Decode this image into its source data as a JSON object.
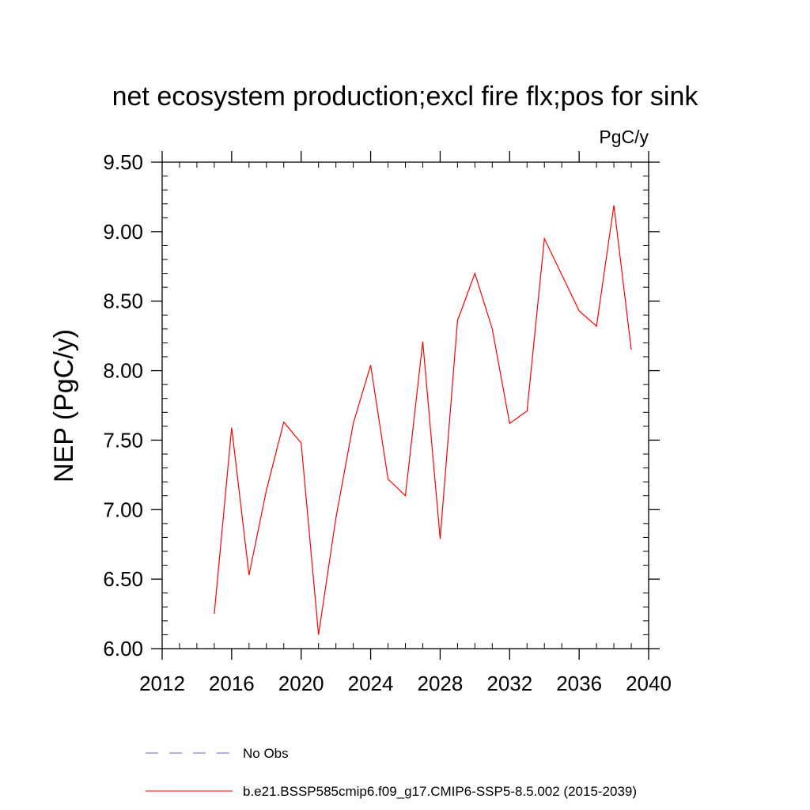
{
  "chart_data": {
    "type": "line",
    "title": "net ecosystem production;excl fire flx;pos for sink",
    "units": "PgC/y",
    "ylabel": "NEP  (PgC/y)",
    "xlabel": "",
    "xlim": [
      2012,
      2040
    ],
    "ylim": [
      6.0,
      9.5
    ],
    "x_ticks": [
      2012,
      2016,
      2020,
      2024,
      2028,
      2032,
      2036,
      2040
    ],
    "x_tick_labels": [
      "2012",
      "2016",
      "2020",
      "2024",
      "2028",
      "2032",
      "2036",
      "2040"
    ],
    "y_ticks": [
      6.0,
      6.5,
      7.0,
      7.5,
      8.0,
      8.5,
      9.0,
      9.5
    ],
    "y_tick_labels": [
      "6.00",
      "6.50",
      "7.00",
      "7.50",
      "8.00",
      "8.50",
      "9.00",
      "9.50"
    ],
    "grid": false,
    "legend_position": "bottom",
    "series": [
      {
        "name": "b.e21.BSSP585cmip6.f09_g17.CMIP6-SSP5-8.5.002 (2015-2039)",
        "color": "#ff0000",
        "x": [
          2015,
          2016,
          2017,
          2018,
          2019,
          2020,
          2021,
          2022,
          2023,
          2024,
          2025,
          2026,
          2027,
          2028,
          2029,
          2030,
          2031,
          2032,
          2033,
          2034,
          2035,
          2036,
          2037,
          2038,
          2039
        ],
        "y": [
          6.25,
          7.59,
          6.53,
          7.14,
          7.63,
          7.48,
          6.1,
          6.94,
          7.62,
          8.04,
          7.22,
          7.1,
          8.21,
          6.79,
          8.36,
          8.7,
          8.3,
          7.62,
          7.71,
          8.95,
          8.69,
          8.43,
          8.32,
          9.19,
          8.15
        ]
      }
    ],
    "legend": [
      {
        "label": "No Obs",
        "color": "#6666cc",
        "style": "dashed"
      },
      {
        "label": "b.e21.BSSP585cmip6.f09_g17.CMIP6-SSP5-8.5.002 (2015-2039)",
        "color": "#ff0000",
        "style": "solid"
      }
    ]
  }
}
